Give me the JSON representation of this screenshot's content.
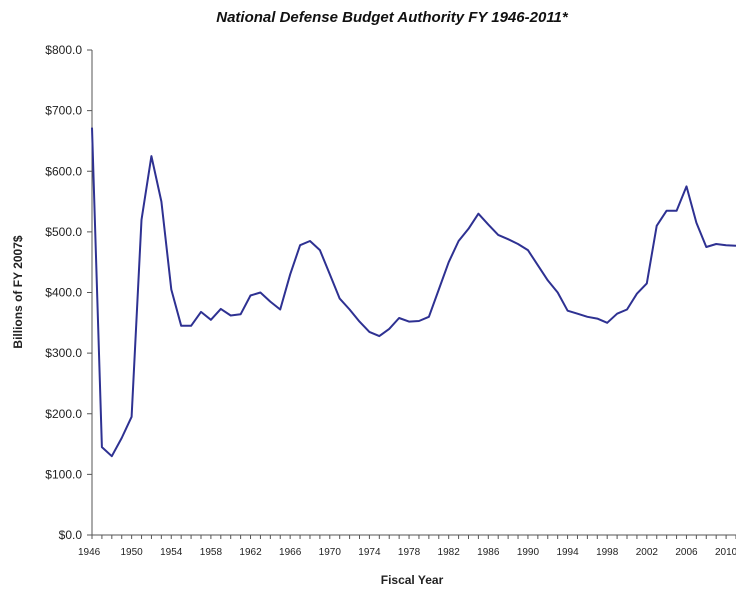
{
  "chart_data": {
    "type": "line",
    "title": "National Defense Budget Authority FY 1946-2011*",
    "xlabel": "Fiscal Year",
    "ylabel": "Billions of FY 2007$",
    "ylim": [
      0,
      800
    ],
    "yticks": [
      "$0.0",
      "$100.0",
      "$200.0",
      "$300.0",
      "$400.0",
      "$500.0",
      "$600.0",
      "$700.0",
      "$800.0"
    ],
    "xticks": [
      "1946",
      "1950",
      "1954",
      "1958",
      "1962",
      "1966",
      "1970",
      "1974",
      "1978",
      "1982",
      "1986",
      "1990",
      "1994",
      "1998",
      "2002",
      "2006",
      "2010"
    ],
    "xlim": [
      1946,
      2011
    ],
    "grid": false,
    "legend": "none",
    "colors": {
      "line": "#2e3192",
      "axis": "#555555"
    },
    "series": [
      {
        "x": [
          1946,
          1947,
          1948,
          1949,
          1950,
          1951,
          1952,
          1953,
          1954,
          1955,
          1956,
          1957,
          1958,
          1959,
          1960,
          1961,
          1962,
          1963,
          1964,
          1965,
          1966,
          1967,
          1968,
          1969,
          1970,
          1971,
          1972,
          1973,
          1974,
          1975,
          1976,
          1977,
          1978,
          1979,
          1980,
          1981,
          1982,
          1983,
          1984,
          1985,
          1986,
          1987,
          1988,
          1989,
          1990,
          1991,
          1992,
          1993,
          1994,
          1995,
          1996,
          1997,
          1998,
          1999,
          2000,
          2001,
          2002,
          2003,
          2004,
          2005,
          2006,
          2007,
          2008,
          2009,
          2010,
          2011
        ],
        "values": [
          672,
          145,
          130,
          160,
          195,
          520,
          625,
          550,
          405,
          345,
          345,
          368,
          355,
          373,
          362,
          364,
          395,
          400,
          385,
          372,
          430,
          478,
          485,
          470,
          430,
          390,
          372,
          352,
          335,
          328,
          340,
          358,
          352,
          353,
          360,
          405,
          450,
          485,
          505,
          530,
          512,
          495,
          488,
          480,
          470,
          445,
          420,
          400,
          370,
          365,
          360,
          357,
          350,
          365,
          372,
          398,
          415,
          510,
          535,
          535,
          575,
          515,
          475,
          480,
          478,
          477
        ]
      }
    ]
  }
}
